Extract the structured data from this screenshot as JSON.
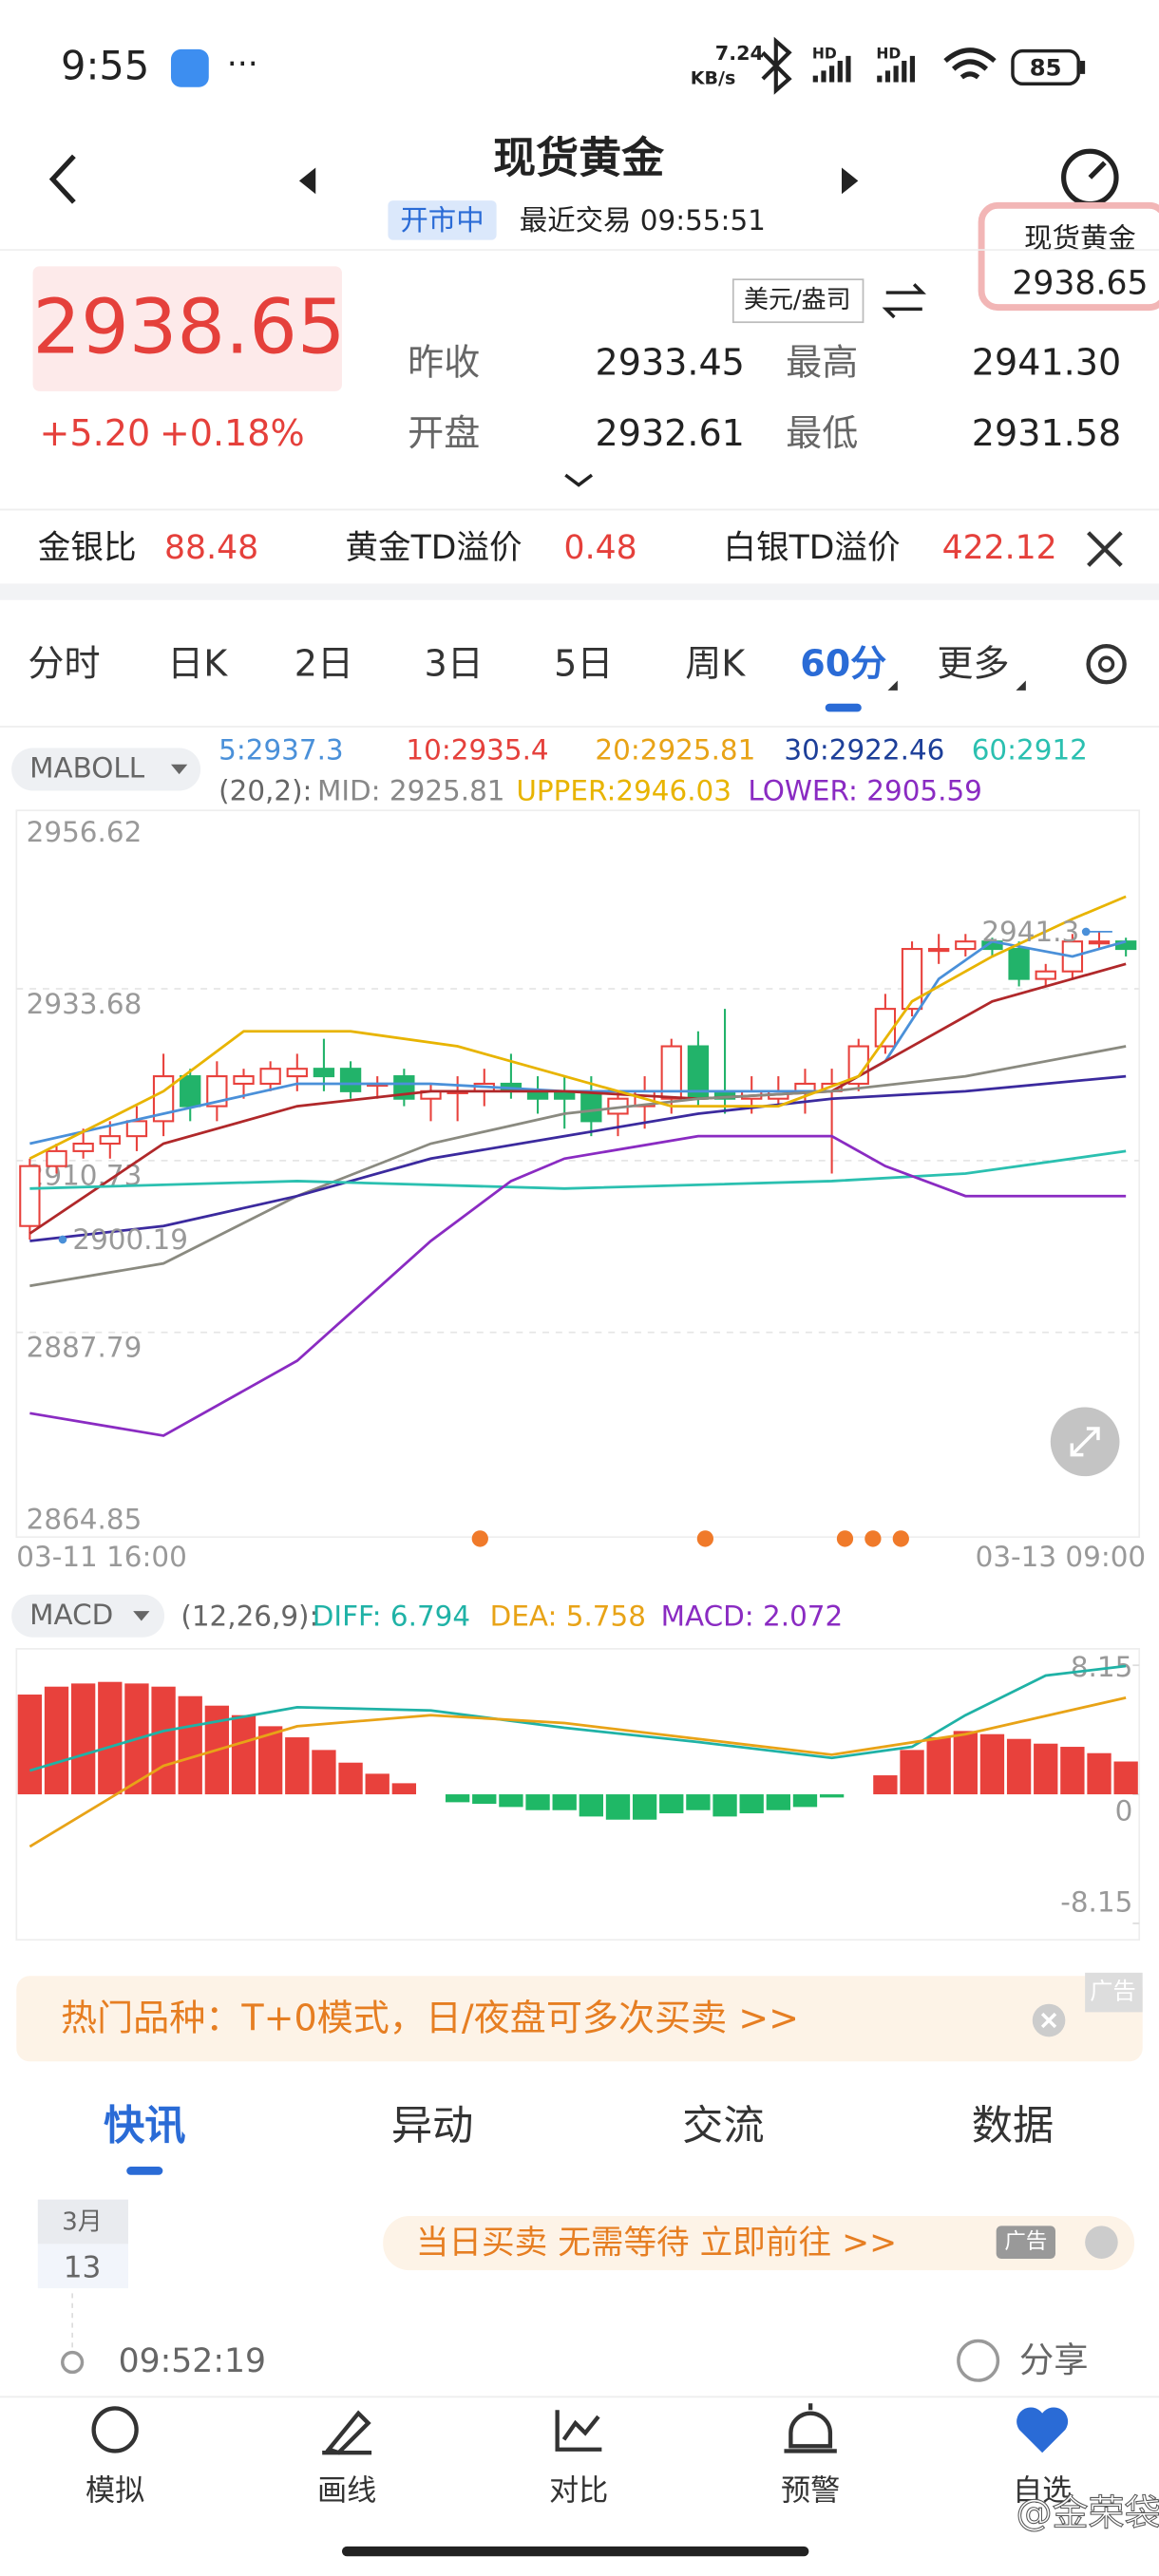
{
  "status": {
    "time": "9:55",
    "more": "···",
    "speed": "7.24",
    "speed_unit": "KB/s",
    "hd1": "HD",
    "hd2": "HD",
    "battery": "85"
  },
  "header": {
    "title": "现货黄金",
    "market_status": "开市中",
    "last_trade": "最近交易 09:55:51",
    "float_name": "现货黄金",
    "float_price": "2938.65"
  },
  "quote": {
    "price": "2938.65",
    "change": "+5.20",
    "change_pct": "+0.18%",
    "unit": "美元/盎司",
    "fields": [
      {
        "label": "昨收",
        "value": "2933.45"
      },
      {
        "label": "最高",
        "value": "2941.30"
      },
      {
        "label": "开盘",
        "value": "2932.61"
      },
      {
        "label": "最低",
        "value": "2931.58"
      }
    ]
  },
  "ticker": [
    {
      "label": "金银比",
      "value": "88.48"
    },
    {
      "label": "黄金TD溢价",
      "value": "0.48"
    },
    {
      "label": "白银TD溢价",
      "value": "422.12"
    }
  ],
  "tabs": [
    "分时",
    "日K",
    "2日",
    "3日",
    "5日",
    "周K",
    "60分",
    "更多"
  ],
  "active_tab": 6,
  "chart_data": [
    {
      "type": "candlestick",
      "indicator": "MABOLL",
      "params": "(20,2):",
      "legend": [
        {
          "label": "5:2937.3",
          "color": "#4a90d9"
        },
        {
          "label": "10:2935.4",
          "color": "#e5403b"
        },
        {
          "label": "20:2925.81",
          "color": "#e8a317"
        },
        {
          "label": "30:2922.46",
          "color": "#1d3f99"
        },
        {
          "label": "60:2912",
          "color": "#2bc0b0"
        },
        {
          "label": "MID: 2925.81",
          "color": "#888888"
        },
        {
          "label": "UPPER:2946.03",
          "color": "#e8b400"
        },
        {
          "label": "LOWER: 2905.59",
          "color": "#8a2bc2"
        }
      ],
      "categories": [
        "03-11 16:00",
        null,
        null,
        null,
        null,
        null,
        null,
        null,
        null,
        null,
        null,
        null,
        null,
        null,
        null,
        null,
        null,
        null,
        null,
        null,
        null,
        null,
        null,
        null,
        null,
        null,
        null,
        null,
        null,
        null,
        null,
        null,
        null,
        null,
        null,
        null,
        null,
        null,
        null,
        null,
        null,
        "03-13 09:00"
      ],
      "open": [
        2902,
        2910,
        2912,
        2913,
        2914,
        2916,
        2922,
        2918,
        2921,
        2921,
        2922,
        2923,
        2923,
        2921,
        2922,
        2919,
        2920,
        2920,
        2921,
        2920,
        2920,
        2920,
        2917,
        2918,
        2919,
        2926,
        2920,
        2919,
        2919,
        2920,
        2920,
        2921,
        2926,
        2931,
        2939,
        2939,
        2940,
        2939,
        2935,
        2936,
        2940,
        2940
      ],
      "high": [
        2911,
        2913,
        2915,
        2916,
        2918,
        2925,
        2923,
        2924,
        2923,
        2924,
        2925,
        2927,
        2924,
        2922,
        2923,
        2921,
        2922,
        2923,
        2925,
        2922,
        2922,
        2922,
        2920,
        2922,
        2927,
        2928,
        2931,
        2922,
        2922,
        2923,
        2923,
        2927,
        2933,
        2940,
        2941,
        2941,
        2940.5,
        2940,
        2937,
        2941,
        2941.3,
        2940.5
      ],
      "low": [
        2900.19,
        2909,
        2911,
        2911,
        2912,
        2914,
        2916,
        2916,
        2919,
        2920,
        2920,
        2920,
        2919,
        2919,
        2918,
        2916,
        2916,
        2918,
        2919,
        2917,
        2915,
        2914,
        2914,
        2915,
        2917,
        2918,
        2917,
        2917,
        2918,
        2917,
        2909,
        2920,
        2925,
        2930,
        2937,
        2938,
        2938,
        2934,
        2934,
        2935,
        2939,
        2938
      ],
      "close": [
        2910,
        2912,
        2913,
        2914,
        2916,
        2922,
        2918,
        2922,
        2922,
        2923,
        2923,
        2922,
        2920,
        2921,
        2919,
        2920,
        2920,
        2921,
        2920,
        2919,
        2919,
        2916,
        2919,
        2920,
        2926,
        2919,
        2919,
        2920,
        2920,
        2921,
        2921,
        2926,
        2931,
        2939,
        2939,
        2940,
        2939,
        2935,
        2936,
        2940,
        2940,
        2939
      ],
      "series": [
        {
          "color": "#4a90d9",
          "x": [
            0,
            5,
            10,
            15,
            20,
            25,
            30,
            32,
            34,
            36,
            39,
            41
          ],
          "values": [
            2913,
            2917,
            2921,
            2921,
            2920,
            2920,
            2920,
            2924,
            2935,
            2940,
            2938,
            2940
          ]
        },
        {
          "color": "#b0282a",
          "x": [
            0,
            5,
            10,
            15,
            20,
            25,
            30,
            33,
            36,
            39,
            41
          ],
          "values": [
            2901,
            2913,
            2918,
            2920,
            2920,
            2919,
            2920,
            2926,
            2932,
            2935,
            2937
          ]
        },
        {
          "color": "#8a8a80",
          "x": [
            0,
            5,
            10,
            15,
            20,
            25,
            30,
            35,
            41
          ],
          "values": [
            2894,
            2897,
            2906,
            2913,
            2917,
            2919,
            2920,
            2922,
            2926
          ]
        },
        {
          "color": "#3b2a9e",
          "x": [
            0,
            5,
            10,
            15,
            20,
            25,
            30,
            35,
            41
          ],
          "values": [
            2900,
            2902,
            2906,
            2911,
            2914,
            2917,
            2919,
            2920,
            2922
          ]
        },
        {
          "color": "#2bc0b0",
          "x": [
            0,
            10,
            20,
            30,
            35,
            41
          ],
          "values": [
            2907,
            2908,
            2907,
            2908,
            2909,
            2912
          ]
        },
        {
          "color": "#e8b400",
          "x": [
            0,
            5,
            8,
            12,
            16,
            20,
            24,
            28,
            31,
            33,
            36,
            39,
            41
          ],
          "values": [
            2911,
            2920,
            2928,
            2928,
            2926,
            2922,
            2918,
            2918,
            2922,
            2932,
            2938,
            2943,
            2946
          ]
        },
        {
          "color": "#8a2bc2",
          "x": [
            0,
            5,
            10,
            15,
            18,
            20,
            25,
            30,
            32,
            35,
            41
          ],
          "values": [
            2877,
            2874,
            2884,
            2900,
            2908,
            2911,
            2914,
            2914,
            2910,
            2906,
            2906
          ]
        }
      ],
      "up_color": "#e8413c",
      "down_color": "#22b36a",
      "ylim": [
        2864.85,
        2956.62
      ],
      "yticks": [
        2864.85,
        2887.79,
        2910.73,
        2933.68,
        2956.62
      ]
    },
    {
      "type": "macd",
      "indicator": "MACD",
      "params": "(12,26,9):",
      "values": [
        6.3,
        6.8,
        7.0,
        7.1,
        7.0,
        6.8,
        6.2,
        5.6,
        5.0,
        4.3,
        3.6,
        2.8,
        2.0,
        1.3,
        0.7,
        0,
        -0.5,
        -0.6,
        -0.8,
        -1.0,
        -1.0,
        -1.4,
        -1.6,
        -1.6,
        -1.2,
        -1.0,
        -1.4,
        -1.2,
        -1.0,
        -0.8,
        -0.2,
        0,
        1.2,
        2.8,
        3.6,
        4.0,
        3.8,
        3.5,
        3.2,
        3.0,
        2.6,
        2.072
      ],
      "series": [
        {
          "label": "DIFF: 6.794",
          "color": "#1fb2a6",
          "x": [
            0,
            5,
            10,
            15,
            20,
            25,
            30,
            33,
            35,
            38,
            41
          ],
          "values": [
            1.5,
            4,
            5.5,
            5.3,
            4.2,
            3.3,
            2.3,
            3,
            5,
            7.5,
            8.1
          ]
        },
        {
          "label": "DEA: 5.758",
          "color": "#e8a317",
          "x": [
            0,
            5,
            10,
            15,
            20,
            25,
            30,
            35,
            41
          ],
          "values": [
            -3.3,
            1.8,
            4.3,
            5,
            4.5,
            3.5,
            2.5,
            3.8,
            6.1
          ]
        }
      ],
      "macd_label": "MACD: 2.072",
      "macd_label_color": "#8a2bc2",
      "up_color": "#e8413c",
      "down_color": "#1fb866",
      "ylim": [
        -8.15,
        8.15
      ],
      "yticks": [
        -8.15,
        0,
        8.15
      ]
    }
  ],
  "banner": {
    "text": "热门品种：T+0模式，日/夜盘可多次买卖 >>",
    "ad": "广告"
  },
  "news_tabs": [
    "快讯",
    "异动",
    "交流",
    "数据"
  ],
  "active_news_tab": 0,
  "feed": {
    "month": "3月",
    "day": "13",
    "ad_text": "当日买卖 无需等待 立即前往 >>",
    "ad": "广告",
    "time": "09:52:19",
    "share": "分享"
  },
  "nav": [
    "模拟",
    "画线",
    "对比",
    "预警",
    "自选"
  ],
  "watermark": "@金荣袋"
}
